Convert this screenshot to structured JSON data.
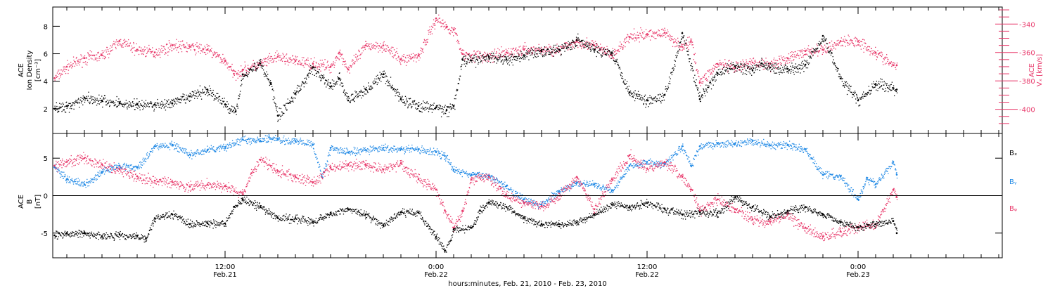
{
  "colors": {
    "axis": "#000000",
    "density": "#000000",
    "vx": "#e8386a",
    "bx": "#000000",
    "by": "#1e88e5",
    "bz": "#e8386a"
  },
  "time_axis": {
    "major_ticks": [
      {
        "t": 12,
        "time": "12:00",
        "date": "Feb.21"
      },
      {
        "t": 24,
        "time": "0:00",
        "date": "Feb.22"
      },
      {
        "t": 36,
        "time": "12:00",
        "date": "Feb.22"
      },
      {
        "t": 48,
        "time": "0:00",
        "date": "Feb.23"
      }
    ],
    "xlabel": "hours:minutes, Feb. 21, 2010 - Feb. 23, 2010"
  },
  "chart_data": [
    {
      "type": "scatter",
      "panel": "top",
      "ylabel_lines": [
        "ACE",
        "Ion Density",
        "[cm⁻³]"
      ],
      "y2label_lines": [
        "ACE",
        "Vₓ [km/s]"
      ],
      "xlim": [
        2.2,
        56.2
      ],
      "ylim": [
        0.2,
        9.4
      ],
      "y_ticks": [
        2,
        4,
        6,
        8
      ],
      "y2lim": [
        -417,
        -328
      ],
      "y2_ticks": [
        -340,
        -360,
        -380,
        -400
      ],
      "series": [
        {
          "key": "density",
          "x": [
            2.3,
            3,
            4,
            5,
            6,
            7,
            8,
            9,
            10,
            11,
            12,
            12.6,
            13,
            14,
            14.6,
            15,
            16,
            17,
            18,
            18.5,
            19,
            20,
            21,
            22,
            23,
            24,
            24.6,
            25,
            25.5,
            26,
            27,
            28,
            29,
            30,
            31,
            32,
            33,
            34,
            35,
            36,
            37,
            38,
            39,
            40,
            41,
            42,
            42.5,
            43,
            44,
            45,
            46,
            47,
            48,
            49,
            50,
            50.2
          ],
          "y": [
            2,
            2.2,
            2.8,
            2.6,
            2.4,
            2.3,
            2.3,
            2.4,
            2.9,
            3.4,
            2.3,
            1.8,
            4.5,
            5.3,
            3.8,
            1.5,
            3.1,
            5,
            3.6,
            4.2,
            2.6,
            3.4,
            4.5,
            2.7,
            2.2,
            2.1,
            1.9,
            2.2,
            5.6,
            5.5,
            5.8,
            5.6,
            5.9,
            6.2,
            6.3,
            7,
            6.3,
            6.1,
            3.2,
            2.6,
            3,
            7.5,
            2.7,
            4.6,
            5.1,
            4.8,
            5.3,
            5,
            4.9,
            5.2,
            7.3,
            4.2,
            2.6,
            3.8,
            3.5,
            3.4
          ]
        },
        {
          "key": "vx",
          "axis": "right",
          "x": [
            2.3,
            3,
            4,
            5,
            6,
            7,
            8,
            9,
            10,
            11,
            12,
            12.5,
            13,
            14,
            15,
            16,
            17,
            18,
            18.5,
            19,
            20,
            21,
            22,
            23,
            24,
            24.6,
            25,
            25.5,
            26,
            27,
            28,
            29,
            30,
            31,
            32,
            33,
            34,
            35,
            36,
            37,
            38,
            38.5,
            39,
            40,
            41,
            42,
            43,
            44,
            45,
            46,
            47,
            48,
            49,
            50,
            50.2
          ],
          "y": [
            -378,
            -370,
            -364,
            -362,
            -352,
            -358,
            -360,
            -355,
            -356,
            -358,
            -366,
            -375,
            -372,
            -368,
            -363,
            -366,
            -368,
            -370,
            -360,
            -372,
            -355,
            -355,
            -365,
            -362,
            -336,
            -342,
            -344,
            -361,
            -362,
            -363,
            -360,
            -358,
            -358,
            -358,
            -352,
            -355,
            -362,
            -349,
            -347,
            -346,
            -356,
            -352,
            -381,
            -368,
            -371,
            -367,
            -368,
            -364,
            -359,
            -358,
            -352,
            -352,
            -360,
            -369,
            -369
          ]
        }
      ]
    },
    {
      "type": "scatter",
      "panel": "bottom",
      "ylabel_lines": [
        "ACE",
        "B",
        "[nT]"
      ],
      "legend": [
        "Bₓ",
        "Bᵧ",
        "Bᵩ"
      ],
      "xlim": [
        2.2,
        56.2
      ],
      "ylim": [
        -8.3,
        8.3
      ],
      "y_ticks": [
        5,
        0,
        -5
      ],
      "zero_line": true,
      "series": [
        {
          "key": "bx",
          "x": [
            2.3,
            3,
            4,
            5,
            6,
            7,
            7.5,
            8,
            9,
            10,
            11,
            12,
            12.5,
            13,
            14,
            15,
            16,
            17,
            18,
            19,
            20,
            21,
            22,
            23,
            24,
            24.5,
            25,
            26,
            26.5,
            27,
            28,
            29,
            30,
            31,
            32,
            33,
            34,
            35,
            36,
            37,
            38,
            39,
            40,
            41,
            42,
            43,
            44,
            45,
            46,
            47,
            48,
            49,
            50,
            50.2
          ],
          "y": [
            -5.3,
            -5,
            -5,
            -5.4,
            -5.2,
            -5.4,
            -5.7,
            -3,
            -2.5,
            -3.8,
            -3.7,
            -3.7,
            -1.5,
            -0.5,
            -1.5,
            -3,
            -3,
            -3.5,
            -2.3,
            -1.8,
            -2.5,
            -4,
            -2.2,
            -2.3,
            -5.5,
            -7.3,
            -4.5,
            -4.3,
            -2,
            -0.9,
            -1.5,
            -3,
            -3.8,
            -3.8,
            -3.6,
            -2.5,
            -1.2,
            -1.5,
            -1,
            -1.7,
            -2.5,
            -2.2,
            -2.3,
            -0.2,
            -1.5,
            -2.8,
            -2,
            -1.5,
            -2.5,
            -3.5,
            -4.2,
            -3.8,
            -3.4,
            -5
          ]
        },
        {
          "key": "by",
          "x": [
            2.3,
            3,
            4,
            5,
            6,
            7,
            8,
            9,
            10,
            11,
            12,
            13,
            14,
            14.5,
            15,
            16,
            17,
            17.5,
            18,
            19,
            20,
            21,
            22,
            23,
            24,
            24.5,
            25,
            26,
            27,
            28,
            29,
            30,
            31,
            32,
            33,
            34,
            35,
            36,
            37,
            38,
            38.5,
            39,
            40,
            41,
            42,
            43,
            44,
            45,
            46,
            47,
            48,
            48.5,
            49,
            50,
            50.2
          ],
          "y": [
            3.8,
            2.2,
            1.5,
            3.2,
            4,
            3.8,
            6.6,
            6.8,
            5.5,
            6.1,
            6.5,
            7.5,
            7.3,
            7.8,
            7.5,
            7.3,
            6.8,
            2.5,
            6.4,
            5.8,
            6.1,
            6.4,
            6.2,
            6.2,
            5.8,
            5.3,
            3.5,
            2.8,
            2.7,
            1.3,
            -0.5,
            -1.2,
            0.6,
            1.7,
            1.5,
            0.7,
            4,
            4.5,
            4.2,
            6.6,
            4,
            6.6,
            7,
            6.9,
            7.3,
            6.7,
            6.8,
            6.2,
            2.8,
            2.6,
            -0.5,
            2.4,
            1.5,
            4.5,
            2.8
          ]
        },
        {
          "key": "bz",
          "x": [
            2.3,
            3,
            4,
            5,
            6,
            7,
            8,
            9,
            10,
            11,
            12,
            13,
            13.5,
            14,
            15,
            16,
            17,
            18,
            19,
            20,
            21,
            22,
            23,
            24,
            24.5,
            25,
            25.5,
            26,
            27,
            28,
            29,
            30,
            31,
            32,
            33,
            34,
            35,
            36,
            37,
            38,
            38.5,
            39,
            40,
            41,
            42,
            43,
            44,
            45,
            46,
            47,
            48,
            49,
            50,
            50.2
          ],
          "y": [
            4,
            4.5,
            5,
            4.2,
            3.5,
            2.6,
            2,
            1.8,
            1.2,
            1.5,
            1.3,
            0.2,
            3,
            4.8,
            3.3,
            2.5,
            1.8,
            3.8,
            4.1,
            4.2,
            3.5,
            4.3,
            2.2,
            0.8,
            -2,
            -4.3,
            -2,
            2.2,
            2.5,
            0,
            -1,
            -1.4,
            0,
            2.5,
            -1.8,
            2.2,
            5.4,
            3.6,
            4.5,
            2.5,
            0.8,
            -2,
            -0.5,
            -1.8,
            -3.2,
            -3.5,
            -2.5,
            -4.3,
            -5.5,
            -4.8,
            -4.2,
            -3.8,
            0.8,
            -0.2
          ]
        }
      ]
    }
  ]
}
